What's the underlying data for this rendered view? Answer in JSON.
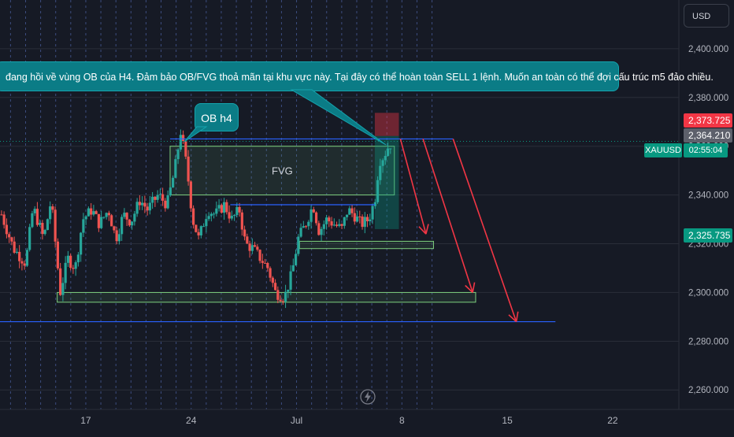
{
  "toolbar": {
    "currency_label": "USD"
  },
  "annotations": {
    "callout_text": "đang hồi về vùng OB của H4. Đảm bảo OB/FVG thoả mãn tại khu vực này. Tại đây có thể hoàn toàn SELL 1 lệnh. Muốn an toàn có thể đợi cấu trúc m5 đảo chiều.",
    "ob_label": "OB h4",
    "fvg_label": "FVG"
  },
  "price_tags": {
    "stop_price": "2,373.725",
    "entry_price": "2,364.210",
    "current_symbol": "XAUUSD",
    "countdown": "02:55:04",
    "target_price": "2,325.735"
  },
  "colors": {
    "background": "#161a25",
    "bull": "#26a69a",
    "bear": "#ef5350",
    "callout": "#0b7c86",
    "zone_border": "#7ed07e",
    "level_line": "#2962ff",
    "arrow": "#f23645"
  },
  "chart_data": {
    "type": "candlestick",
    "symbol": "XAUUSD",
    "y_ticks": [
      "2,260.000",
      "2,280.000",
      "2,300.000",
      "2,320.000",
      "2,340.000",
      "2,360.000",
      "2,380.000",
      "2,400.000"
    ],
    "y_tick_values": [
      2260,
      2280,
      2300,
      2320,
      2340,
      2360,
      2380,
      2400
    ],
    "ylim": [
      2252,
      2420
    ],
    "x_ticks": [
      "17",
      "24",
      "Jul",
      "8",
      "15",
      "22"
    ],
    "x_tick_days": [
      17,
      24,
      31,
      38,
      45,
      52
    ],
    "xlim": [
      11.3,
      56.4
    ],
    "current_price": 2362,
    "ohlc_anchors": [
      [
        11.4,
        2332
      ],
      [
        12.2,
        2318
      ],
      [
        13.0,
        2312
      ],
      [
        13.5,
        2335
      ],
      [
        14.2,
        2322
      ],
      [
        14.7,
        2338
      ],
      [
        15.3,
        2300
      ],
      [
        15.8,
        2314
      ],
      [
        16.3,
        2310
      ],
      [
        16.8,
        2330
      ],
      [
        17.4,
        2334
      ],
      [
        17.9,
        2328
      ],
      [
        18.5,
        2334
      ],
      [
        19.0,
        2322
      ],
      [
        19.5,
        2332
      ],
      [
        20.0,
        2329
      ],
      [
        20.6,
        2338
      ],
      [
        21.1,
        2334
      ],
      [
        21.8,
        2340
      ],
      [
        22.4,
        2336
      ],
      [
        22.9,
        2350
      ],
      [
        23.3,
        2366
      ],
      [
        23.7,
        2352
      ],
      [
        24.1,
        2330
      ],
      [
        24.5,
        2322
      ],
      [
        25.1,
        2334
      ],
      [
        25.6,
        2332
      ],
      [
        26.2,
        2336
      ],
      [
        26.7,
        2330
      ],
      [
        27.2,
        2334
      ],
      [
        27.6,
        2320
      ],
      [
        28.1,
        2318
      ],
      [
        28.6,
        2314
      ],
      [
        29.1,
        2310
      ],
      [
        29.6,
        2300
      ],
      [
        30.2,
        2298
      ],
      [
        30.7,
        2308
      ],
      [
        31.1,
        2322
      ],
      [
        31.6,
        2328
      ],
      [
        32.1,
        2336
      ],
      [
        32.5,
        2325
      ],
      [
        33.0,
        2330
      ],
      [
        33.5,
        2328
      ],
      [
        34.0,
        2326
      ],
      [
        34.4,
        2334
      ],
      [
        34.8,
        2332
      ],
      [
        35.3,
        2328
      ],
      [
        35.8,
        2330
      ],
      [
        36.2,
        2338
      ],
      [
        36.5,
        2354
      ],
      [
        36.8,
        2356
      ],
      [
        37.1,
        2360
      ],
      [
        37.4,
        2362
      ]
    ],
    "zones": [
      {
        "name": "FVG",
        "price_low": 2340,
        "price_high": 2360,
        "day_start": 22.6,
        "day_end": 37.5
      },
      {
        "name": "entry-zone",
        "price_low": 2326,
        "price_high": 2364.2,
        "day_start": 36.2,
        "day_end": 37.8
      },
      {
        "name": "stop-zone",
        "price_low": 2364.2,
        "price_high": 2373.7,
        "day_start": 36.2,
        "day_end": 37.8
      },
      {
        "name": "demand-zone-mid",
        "price_low": 2318,
        "price_high": 2321,
        "day_start": 31.2,
        "day_end": 40.1
      },
      {
        "name": "demand-zone-low",
        "price_low": 2296,
        "price_high": 2300,
        "day_start": 15.1,
        "day_end": 42.9
      }
    ],
    "levels": [
      {
        "name": "resistance-line",
        "price": 2363,
        "day_start": 22.6,
        "day_end": 41.4
      },
      {
        "name": "mid-line",
        "price": 2336,
        "day_start": 26.6,
        "day_end": 36.2
      },
      {
        "name": "low-line",
        "price": 2288,
        "day_start": 11.3,
        "day_end": 48.2
      }
    ],
    "arrows": [
      {
        "name": "arrow-1",
        "from": [
          37.9,
          2363
        ],
        "to": [
          39.6,
          2324
        ]
      },
      {
        "name": "arrow-2",
        "from": [
          39.4,
          2363
        ],
        "to": [
          42.7,
          2300
        ]
      },
      {
        "name": "arrow-3",
        "from": [
          41.4,
          2363
        ],
        "to": [
          45.6,
          2288
        ]
      }
    ]
  }
}
